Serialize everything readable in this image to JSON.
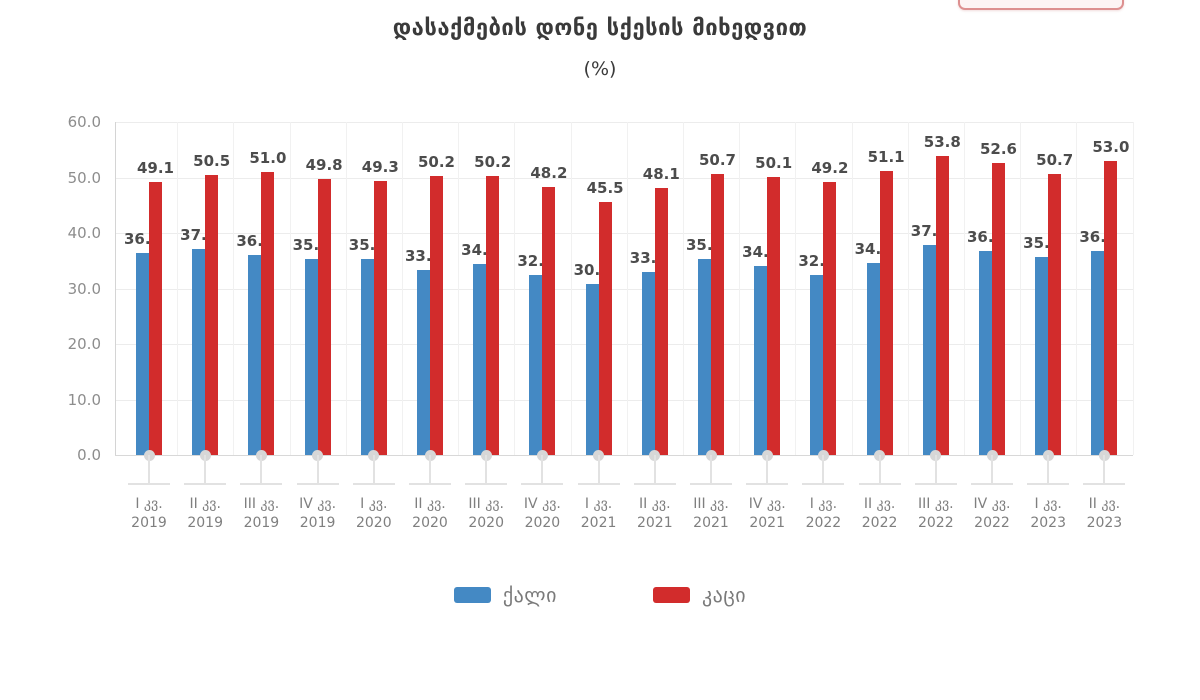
{
  "header": {
    "title": "დასაქმების დონე სქესის მიხედვით",
    "subtitle": "(%)"
  },
  "chart_data": {
    "type": "bar",
    "title": "დასაქმების დონე სქესის მიხედვით (%)",
    "ylabel": "%",
    "xlabel": "",
    "ylim": [
      0,
      60
    ],
    "ytick_step": 10,
    "yticks": [
      "0.0",
      "10.0",
      "20.0",
      "30.0",
      "40.0",
      "50.0",
      "60.0"
    ],
    "grid": true,
    "legend_position": "bottom",
    "value_labels": true,
    "categories": [
      "I კვ. 2019",
      "II კვ. 2019",
      "III კვ. 2019",
      "IV კვ. 2019",
      "I კვ. 2020",
      "II კვ. 2020",
      "III კვ. 2020",
      "IV კვ. 2020",
      "I კვ. 2021",
      "II კვ. 2021",
      "III კვ. 2021",
      "IV კვ. 2021",
      "I კვ. 2022",
      "II კვ. 2022",
      "III კვ. 2022",
      "IV კვ. 2022",
      "I კვ. 2023",
      "II კვ. 2023"
    ],
    "categories_two_line": [
      {
        "quarter": "I კვ.",
        "year": "2019"
      },
      {
        "quarter": "II კვ.",
        "year": "2019"
      },
      {
        "quarter": "III კვ.",
        "year": "2019"
      },
      {
        "quarter": "IV კვ.",
        "year": "2019"
      },
      {
        "quarter": "I კვ.",
        "year": "2020"
      },
      {
        "quarter": "II კვ.",
        "year": "2020"
      },
      {
        "quarter": "III კვ.",
        "year": "2020"
      },
      {
        "quarter": "IV კვ.",
        "year": "2020"
      },
      {
        "quarter": "I კვ.",
        "year": "2021"
      },
      {
        "quarter": "II კვ.",
        "year": "2021"
      },
      {
        "quarter": "III კვ.",
        "year": "2021"
      },
      {
        "quarter": "IV კვ.",
        "year": "2021"
      },
      {
        "quarter": "I კვ.",
        "year": "2022"
      },
      {
        "quarter": "II კვ.",
        "year": "2022"
      },
      {
        "quarter": "III კვ.",
        "year": "2022"
      },
      {
        "quarter": "IV კვ.",
        "year": "2022"
      },
      {
        "quarter": "I კვ.",
        "year": "2023"
      },
      {
        "quarter": "II კვ.",
        "year": "2023"
      }
    ],
    "series": [
      {
        "name": "ქალი",
        "color": "#4489C4",
        "values": [
          36.4,
          37.1,
          36.1,
          35.3,
          35.4,
          33.3,
          34.4,
          32.4,
          30.9,
          33.0,
          35.4,
          34.0,
          32.5,
          34.6,
          37.8,
          36.8,
          35.6,
          36.7
        ]
      },
      {
        "name": "კაცი",
        "color": "#D22C2C",
        "values": [
          49.1,
          50.5,
          51.0,
          49.8,
          49.3,
          50.2,
          50.2,
          48.2,
          45.5,
          48.1,
          50.7,
          50.1,
          49.2,
          51.1,
          53.8,
          52.6,
          50.7,
          53.0
        ]
      }
    ]
  },
  "legend": {
    "items": [
      {
        "label": "ქალი",
        "color": "#4489C4"
      },
      {
        "label": "კაცი",
        "color": "#D22C2C"
      }
    ]
  }
}
